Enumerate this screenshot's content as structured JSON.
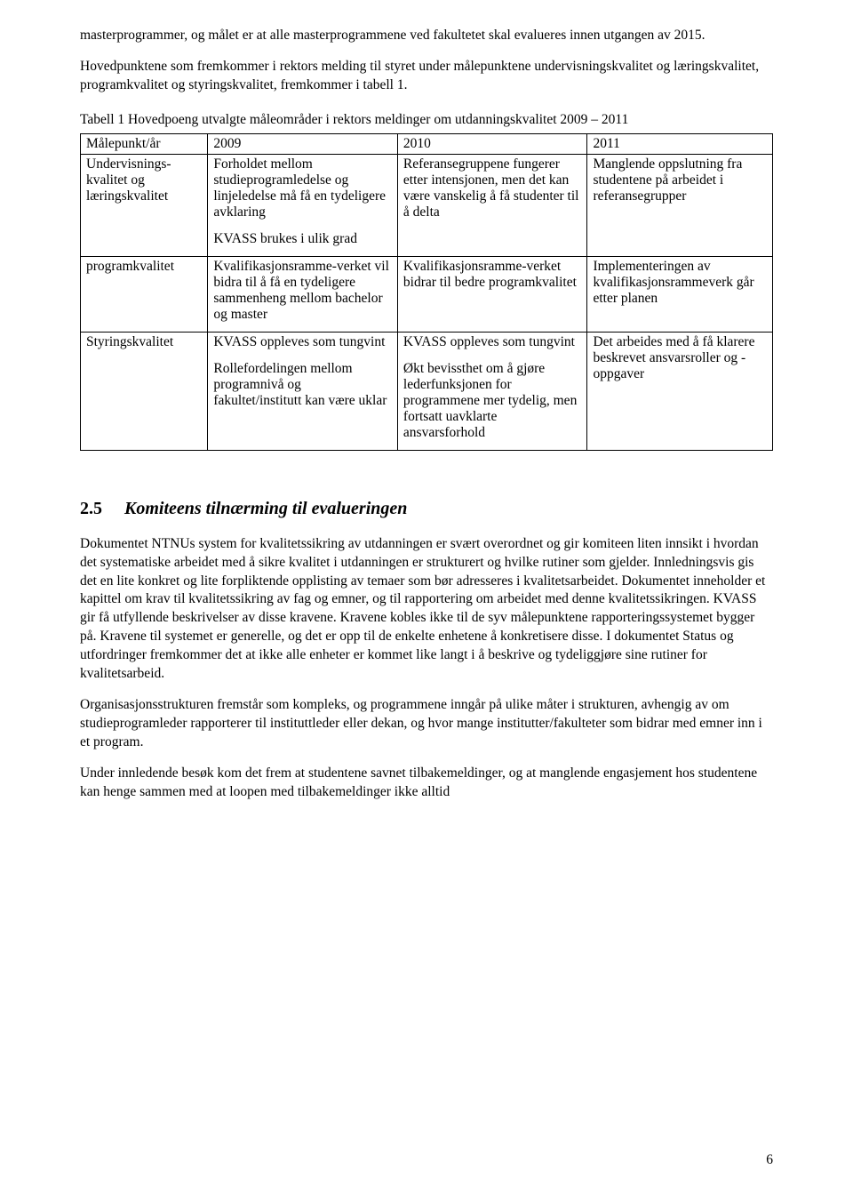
{
  "intro": {
    "p1": "masterprogrammer, og målet er at alle masterprogrammene ved fakultetet skal evalueres innen utgangen av 2015.",
    "p2": "Hovedpunktene som fremkommer i rektors melding til styret under målepunktene undervisningskvalitet og læringskvalitet, programkvalitet og styringskvalitet, fremkommer i tabell 1."
  },
  "table": {
    "caption": "Tabell 1 Hovedpoeng utvalgte måleområder i rektors meldinger om utdanningskvalitet 2009 – 2011",
    "header": {
      "c1": "Målepunkt/år",
      "c2": "2009",
      "c3": "2010",
      "c4": "2011"
    },
    "rows": [
      {
        "label": "Undervisnings-kvalitet og læringskvalitet",
        "c2009a": "Forholdet mellom studieprogramledelse og linjeledelse må få en tydeligere avklaring",
        "c2009b": "KVASS brukes i ulik grad",
        "c2010": "Referansegruppene fungerer etter intensjonen, men det kan være vanskelig å få studenter til å delta",
        "c2011": "Manglende oppslutning fra studentene på arbeidet i referansegrupper"
      },
      {
        "label": "programkvalitet",
        "c2009": "Kvalifikasjonsramme-verket vil bidra til å få en tydeligere sammenheng mellom bachelor og master",
        "c2010": "Kvalifikasjonsramme-verket bidrar til bedre programkvalitet",
        "c2011": "Implementeringen av kvalifikasjonsrammeverk går etter planen"
      },
      {
        "label": "Styringskvalitet",
        "c2009a": "KVASS oppleves som tungvint",
        "c2009b": "Rollefordelingen mellom programnivå og fakultet/institutt kan være uklar",
        "c2010a": "KVASS oppleves som tungvint",
        "c2010b": "Økt bevissthet om å gjøre lederfunksjonen for programmene mer tydelig, men fortsatt uavklarte ansvarsforhold",
        "c2011": "Det arbeides med å få klarere beskrevet ansvarsroller og -oppgaver"
      }
    ]
  },
  "section": {
    "num": "2.5",
    "title": "Komiteens tilnærming til evalueringen",
    "p1": "Dokumentet NTNUs system for kvalitetssikring av utdanningen er svært overordnet og gir komiteen liten innsikt i hvordan det systematiske arbeidet med å sikre kvalitet i utdanningen er strukturert og hvilke rutiner som gjelder. Innledningsvis gis det en lite konkret og lite forpliktende opplisting av temaer som bør adresseres i kvalitetsarbeidet. Dokumentet inneholder et kapittel om krav til kvalitetssikring av fag og emner, og til rapportering om arbeidet med denne kvalitetssikringen. KVASS gir få utfyllende beskrivelser av disse kravene. Kravene kobles ikke til de syv målepunktene rapporteringssystemet bygger på. Kravene til systemet er generelle, og det er opp til de enkelte enhetene å konkretisere disse. I dokumentet Status og utfordringer fremkommer det at ikke alle enheter er kommet like langt i å beskrive og tydeliggjøre sine rutiner for kvalitetsarbeid.",
    "p2": "Organisasjonsstrukturen fremstår som kompleks, og programmene inngår på ulike måter i strukturen, avhengig av om studieprogramleder rapporterer til instituttleder eller dekan, og hvor mange institutter/fakulteter som bidrar med emner inn i et program.",
    "p3": "Under innledende besøk kom det frem at studentene savnet tilbakemeldinger, og at manglende engasjement hos studentene kan henge sammen med at loopen med tilbakemeldinger ikke alltid"
  },
  "page_number": "6"
}
